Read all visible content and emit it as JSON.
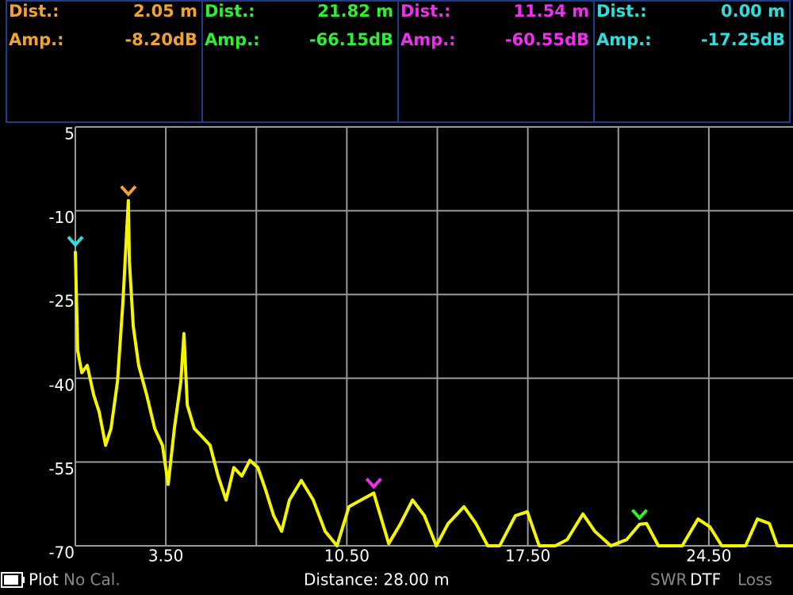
{
  "panels": [
    {
      "dist_label": "Dist.:",
      "dist": "2.05 m",
      "amp_label": "Amp.:",
      "amp": "-8.20dB",
      "color": "#f2a22e"
    },
    {
      "dist_label": "Dist.:",
      "dist": "21.82 m",
      "amp_label": "Amp.:",
      "amp": "-66.15dB",
      "color": "#2ef02e"
    },
    {
      "dist_label": "Dist.:",
      "dist": "11.54 m",
      "amp_label": "Amp.:",
      "amp": "-60.55dB",
      "color": "#f02ef0"
    },
    {
      "dist_label": "Dist.:",
      "dist": "0.00 m",
      "amp_label": "Amp.:",
      "amp": "-17.25dB",
      "color": "#2edede"
    }
  ],
  "chart_data": {
    "type": "line",
    "x": [
      0.0,
      0.09,
      0.25,
      0.46,
      0.71,
      0.92,
      1.17,
      1.38,
      1.63,
      1.84,
      2.05,
      2.09,
      2.24,
      2.45,
      2.76,
      3.07,
      3.37,
      3.59,
      3.83,
      4.08,
      4.2,
      4.33,
      4.6,
      4.91,
      5.21,
      5.52,
      5.83,
      6.13,
      6.44,
      6.75,
      7.06,
      7.36,
      7.67,
      7.98,
      8.28,
      8.74,
      9.2,
      9.66,
      10.12,
      10.58,
      11.54,
      12.12,
      12.58,
      13.04,
      13.5,
      13.96,
      14.42,
      15.03,
      15.49,
      15.95,
      16.41,
      17.02,
      17.48,
      17.94,
      18.56,
      19.02,
      19.63,
      20.09,
      20.71,
      21.32,
      21.82,
      22.09,
      22.55,
      23.47,
      24.08,
      24.54,
      25.0,
      25.92,
      26.38,
      26.84,
      27.15,
      27.76
    ],
    "series": [
      {
        "color": "#f5f500",
        "values": [
          -17.25,
          -35,
          -39,
          -37.7,
          -43,
          -46,
          -52,
          -49,
          -40.6,
          -26.4,
          -8.2,
          -19,
          -30.7,
          -37.7,
          -43,
          -49,
          -52,
          -59,
          -49,
          -40.6,
          -32,
          -44.8,
          -49,
          -50.5,
          -52,
          -57.5,
          -61.8,
          -56,
          -57.5,
          -54.7,
          -56,
          -60,
          -64.6,
          -67.4,
          -61.8,
          -58.3,
          -61.8,
          -67.4,
          -70,
          -63,
          -60.55,
          -69.6,
          -66,
          -61.8,
          -64.6,
          -70,
          -66,
          -63,
          -66,
          -70,
          -70,
          -64.6,
          -63.9,
          -70,
          -70,
          -68.9,
          -64.3,
          -67.4,
          -70,
          -68.9,
          -66.15,
          -66,
          -70,
          -70,
          -65.2,
          -66.6,
          -70,
          -70,
          -65.2,
          -66,
          -70,
          -70
        ]
      }
    ],
    "markers": [
      {
        "x": 2.05,
        "y": -8.2,
        "color": "#f2a22e"
      },
      {
        "x": 21.82,
        "y": -66.15,
        "color": "#2ef02e"
      },
      {
        "x": 11.54,
        "y": -60.55,
        "color": "#f02ef0"
      },
      {
        "x": 0.0,
        "y": -17.25,
        "color": "#2edede"
      }
    ],
    "xlim": [
      0,
      28
    ],
    "ylim": [
      -70,
      5
    ],
    "yticks": [
      5,
      -10,
      -25,
      -40,
      -55,
      -70
    ],
    "xticks": [
      {
        "value": 3.5,
        "label": "3.50"
      },
      {
        "value": 10.5,
        "label": "10.50"
      },
      {
        "value": 17.5,
        "label": "17.50"
      },
      {
        "value": 24.5,
        "label": "24.50"
      }
    ],
    "xgrid": [
      0,
      3.5,
      7,
      10.5,
      14,
      17.5,
      21,
      24.5,
      28
    ],
    "grid": true
  },
  "footer": {
    "mode": "Plot",
    "cal": "No Cal.",
    "distance": "Distance: 28.00 m",
    "tabs": [
      "SWR",
      "DTF",
      "Loss"
    ]
  }
}
